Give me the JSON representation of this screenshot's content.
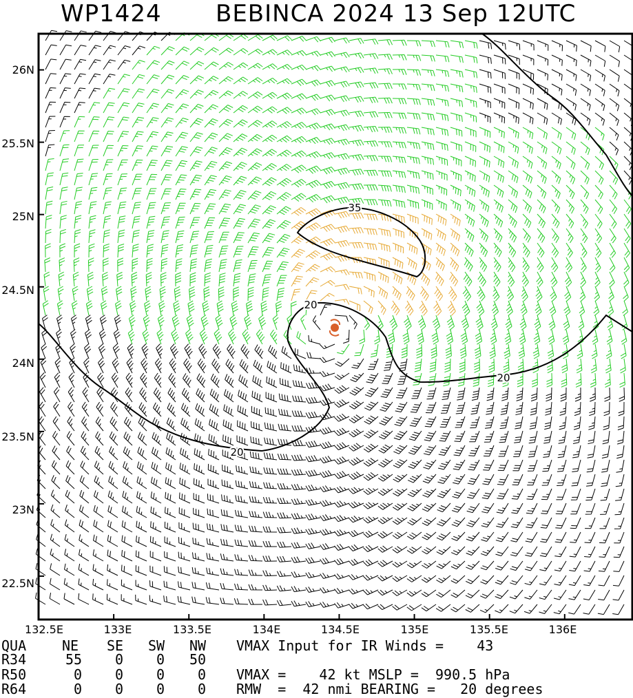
{
  "header": {
    "storm_id": "WP1424",
    "storm_title": "BEBINCA 2024 13 Sep 12UTC"
  },
  "axes": {
    "lat_labels": [
      "26N",
      "25.5N",
      "25N",
      "24.5N",
      "24N",
      "23.5N",
      "23N",
      "22.5N"
    ],
    "lon_labels": [
      "132.5E",
      "133E",
      "133.5E",
      "134E",
      "134.5E",
      "135E",
      "135.5E",
      "136E"
    ]
  },
  "map": {
    "lon_range": [
      132.5,
      136.45
    ],
    "lat_range": [
      22.2,
      26.25
    ],
    "center": {
      "lon": 134.45,
      "lat": 24.24
    },
    "contours": [
      {
        "label": "35"
      },
      {
        "label": "20"
      },
      {
        "label": "20"
      },
      {
        "label": "20"
      }
    ],
    "colors": {
      "barb_low": "#000000",
      "barb_34kt": "#22cc22",
      "barb_50kt": "#e6a832",
      "center_marker": "#d9602a"
    }
  },
  "info": {
    "quadrant_header": [
      "QUA",
      "NE",
      "SE",
      "SW",
      "NW"
    ],
    "rows": [
      {
        "name": "R34",
        "ne": "55",
        "se": "0",
        "sw": "0",
        "nw": "50"
      },
      {
        "name": "R50",
        "ne": "0",
        "se": "0",
        "sw": "0",
        "nw": "0"
      },
      {
        "name": "R64",
        "ne": "0",
        "se": "0",
        "sw": "0",
        "nw": "0"
      }
    ],
    "vmax_input": "VMAX Input for IR Winds =    43",
    "vmax_mslp": "VMAX =    42 kt MSLP =  990.5 hPa",
    "rmw_bearing": "RMW  =  42 nmi BEARING =   20 degrees"
  }
}
